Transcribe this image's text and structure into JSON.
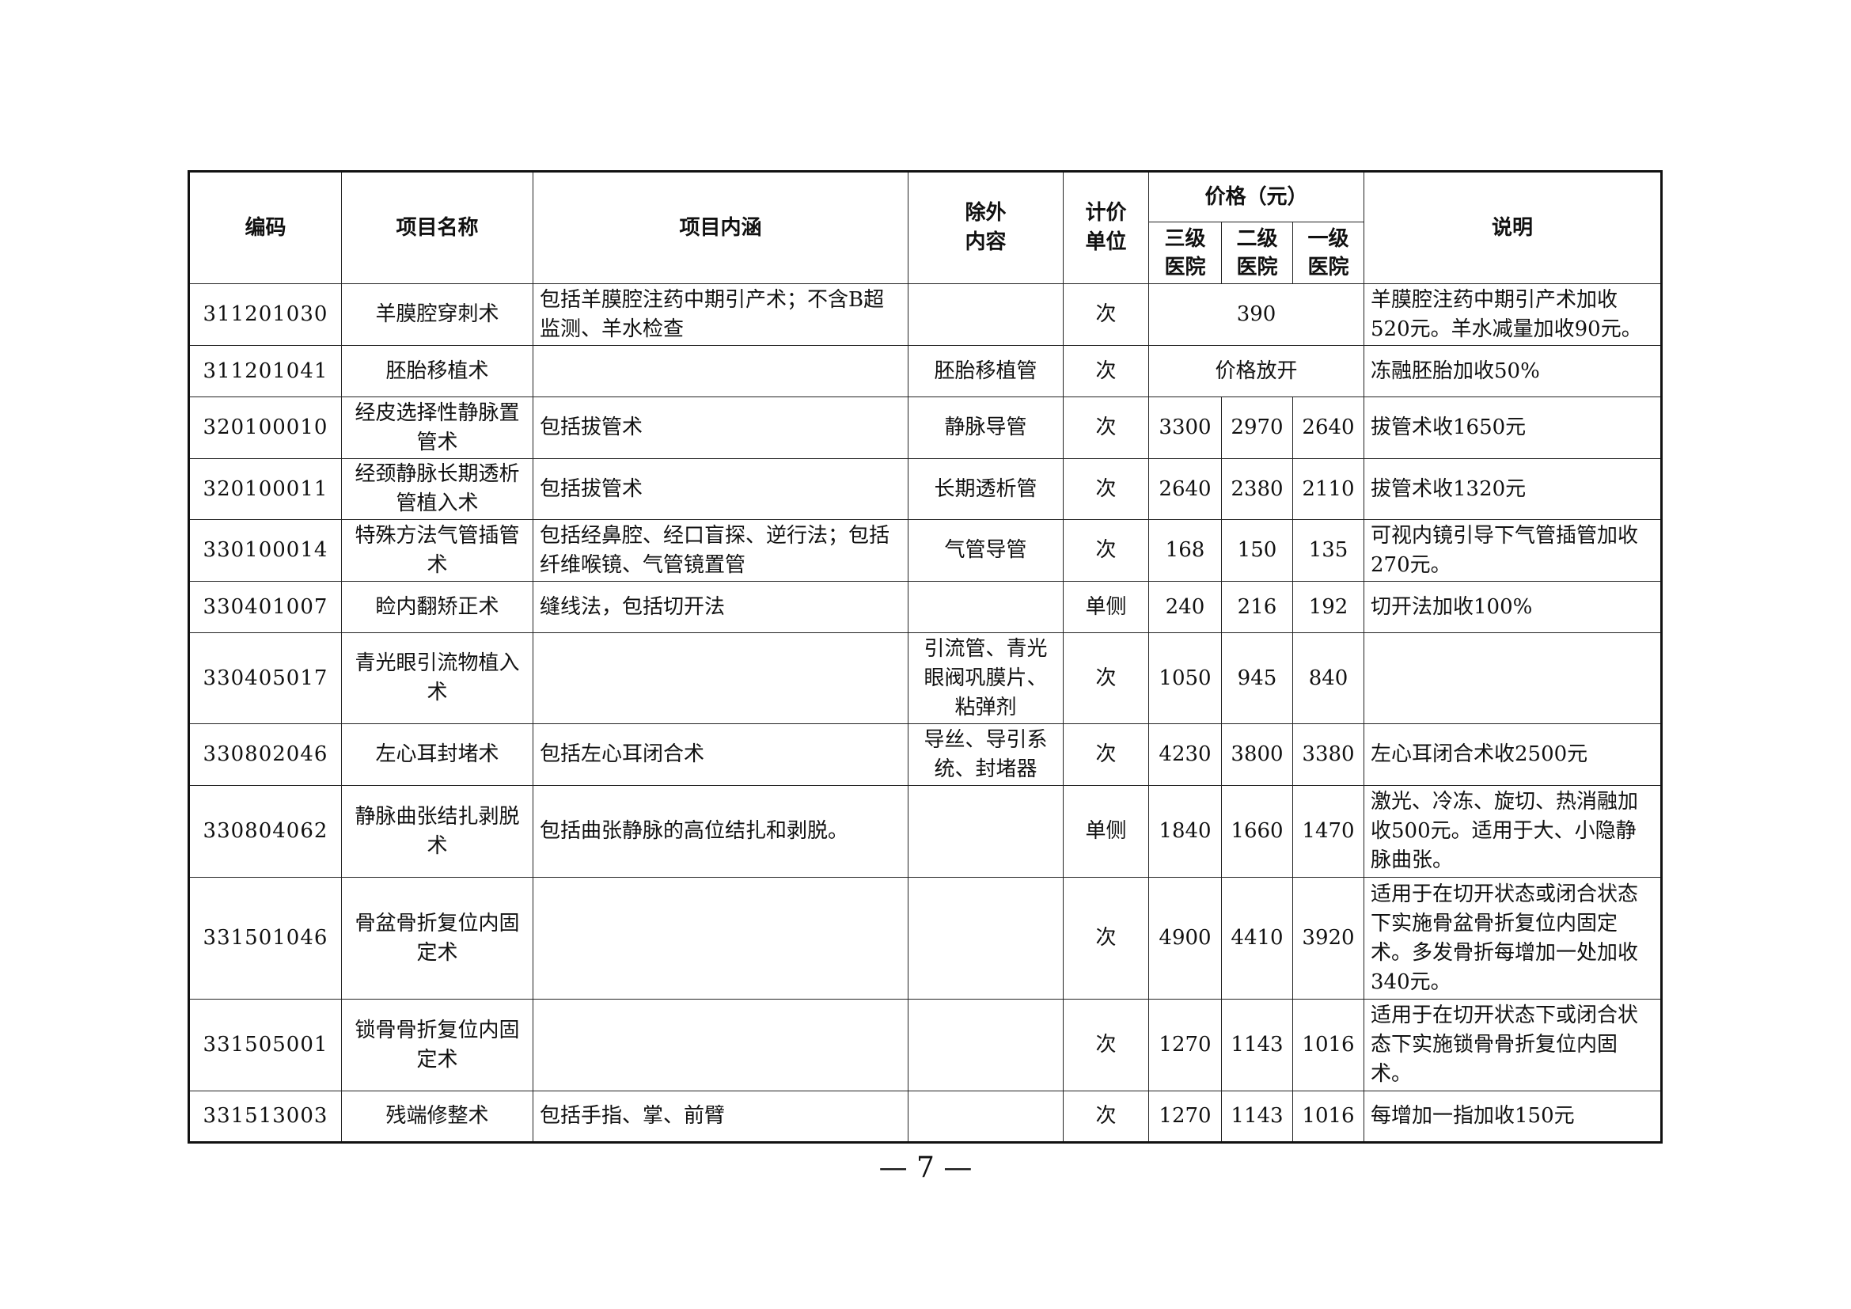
{
  "header": {
    "code": "编码",
    "name": "项目名称",
    "content": "项目内涵",
    "excluded": "除外\n内容",
    "unit": "计价\n单位",
    "price": "价格（元）",
    "level3": "三级\n医院",
    "level2": "二级\n医院",
    "level1": "一级\n医院",
    "note": "说明"
  },
  "rows": [
    {
      "code": "311201030",
      "name": "羊膜腔穿刺术",
      "content": "包括羊膜腔注药中期引产术；不含B超监测、羊水检查",
      "excluded": "",
      "unit": "次",
      "merged_price": "390",
      "note": "羊膜腔注药中期引产术加收520元。羊水减量加收90元。"
    },
    {
      "code": "311201041",
      "name": "胚胎移植术",
      "content": "",
      "excluded": "胚胎移植管",
      "unit": "次",
      "merged_price": "价格放开",
      "note": "冻融胚胎加收50%"
    },
    {
      "code": "320100010",
      "name": "经皮选择性静脉置管术",
      "content": "包括拔管术",
      "excluded": "静脉导管",
      "unit": "次",
      "p3": "3300",
      "p2": "2970",
      "p1": "2640",
      "note": "拔管术收1650元"
    },
    {
      "code": "320100011",
      "name": "经颈静脉长期透析管植入术",
      "content": "包括拔管术",
      "excluded": "长期透析管",
      "unit": "次",
      "p3": "2640",
      "p2": "2380",
      "p1": "2110",
      "note": "拔管术收1320元"
    },
    {
      "code": "330100014",
      "name": "特殊方法气管插管术",
      "content": "包括经鼻腔、经口盲探、逆行法；包括纤维喉镜、气管镜置管",
      "excluded": "气管导管",
      "unit": "次",
      "p3": "168",
      "p2": "150",
      "p1": "135",
      "note": "可视内镜引导下气管插管加收270元。"
    },
    {
      "code": "330401007",
      "name": "睑内翻矫正术",
      "content": "缝线法，包括切开法",
      "excluded": "",
      "unit": "单侧",
      "p3": "240",
      "p2": "216",
      "p1": "192",
      "note": "切开法加收100%"
    },
    {
      "code": "330405017",
      "name": "青光眼引流物植入术",
      "content": "",
      "excluded": "引流管、青光眼阀巩膜片、粘弹剂",
      "unit": "次",
      "p3": "1050",
      "p2": "945",
      "p1": "840",
      "note": ""
    },
    {
      "code": "330802046",
      "name": "左心耳封堵术",
      "content": "包括左心耳闭合术",
      "excluded": "导丝、导引系统、封堵器",
      "unit": "次",
      "p3": "4230",
      "p2": "3800",
      "p1": "3380",
      "note": "左心耳闭合术收2500元"
    },
    {
      "code": "330804062",
      "name": "静脉曲张结扎剥脱术",
      "content": "包括曲张静脉的高位结扎和剥脱。",
      "excluded": "",
      "unit": "单侧",
      "p3": "1840",
      "p2": "1660",
      "p1": "1470",
      "note": "激光、冷冻、旋切、热消融加收500元。适用于大、小隐静脉曲张。"
    },
    {
      "code": "331501046",
      "name": "骨盆骨折复位内固定术",
      "content": "",
      "excluded": "",
      "unit": "次",
      "p3": "4900",
      "p2": "4410",
      "p1": "3920",
      "note": "适用于在切开状态或闭合状态下实施骨盆骨折复位内固定术。多发骨折每增加一处加收340元。"
    },
    {
      "code": "331505001",
      "name": "锁骨骨折复位内固定术",
      "content": "",
      "excluded": "",
      "unit": "次",
      "p3": "1270",
      "p2": "1143",
      "p1": "1016",
      "note": "适用于在切开状态下或闭合状态下实施锁骨骨折复位内固术。"
    },
    {
      "code": "331513003",
      "name": "残端修整术",
      "content": "包括手指、掌、前臂",
      "excluded": "",
      "unit": "次",
      "p3": "1270",
      "p2": "1143",
      "p1": "1016",
      "note": "每增加一指加收150元"
    }
  ],
  "page_number": "— 7 —"
}
